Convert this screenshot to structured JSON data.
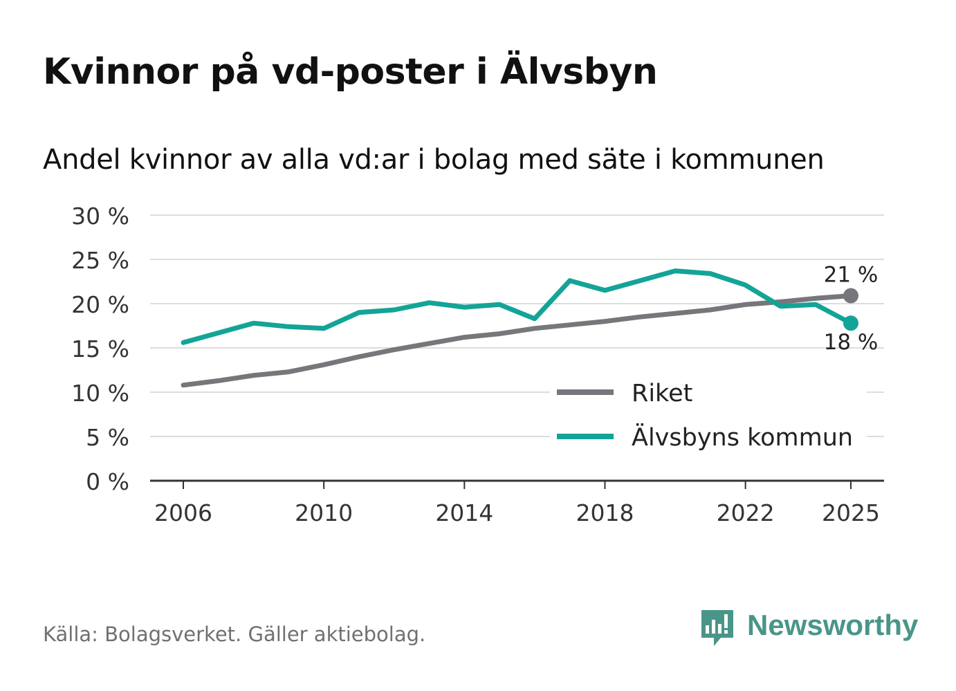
{
  "header": {
    "title": "Kvinnor på vd-poster i Älvsbyn",
    "subtitle": "Andel kvinnor av alla vd:ar i bolag med säte i kommunen"
  },
  "footer": {
    "source": "Källa: Bolagsverket. Gäller aktiebolag.",
    "brand": "Newsworthy"
  },
  "colors": {
    "riket": "#77767b",
    "alvsbyn": "#13a497",
    "grid": "#dddddd",
    "axis": "#333333",
    "brand": "#4a9589"
  },
  "chart_data": {
    "type": "line",
    "x": [
      2006,
      2007,
      2008,
      2009,
      2010,
      2011,
      2012,
      2013,
      2014,
      2015,
      2016,
      2017,
      2018,
      2019,
      2020,
      2021,
      2022,
      2023,
      2024,
      2025
    ],
    "series": [
      {
        "name": "Riket",
        "color": "#77767b",
        "values": [
          10.8,
          11.3,
          11.9,
          12.3,
          13.1,
          14.0,
          14.8,
          15.5,
          16.2,
          16.6,
          17.2,
          17.6,
          18.0,
          18.5,
          18.9,
          19.3,
          19.9,
          20.2,
          20.6,
          20.9
        ]
      },
      {
        "name": "Älvsbyns kommun",
        "color": "#13a497",
        "values": [
          15.6,
          16.7,
          17.8,
          17.4,
          17.2,
          19.0,
          19.3,
          20.1,
          19.6,
          19.9,
          18.3,
          22.6,
          21.5,
          22.6,
          23.7,
          23.4,
          22.1,
          19.7,
          19.9,
          17.8
        ]
      }
    ],
    "xticks": [
      2006,
      2010,
      2014,
      2018,
      2022,
      2025
    ],
    "xtick_labels": [
      "2006",
      "2010",
      "2014",
      "2018",
      "2022",
      "2025"
    ],
    "yticks": [
      0,
      5,
      10,
      15,
      20,
      25,
      30
    ],
    "ytick_labels": [
      "0 %",
      "5 %",
      "10 %",
      "15 %",
      "20 %",
      "25 %",
      "30 %"
    ],
    "ylim": [
      0,
      30
    ],
    "xlim": [
      2006,
      2025
    ],
    "end_labels": {
      "riket": "21 %",
      "alvsbyn": "18 %"
    },
    "grid": true,
    "legend": "bottom-right",
    "xlabel": "",
    "ylabel": ""
  }
}
